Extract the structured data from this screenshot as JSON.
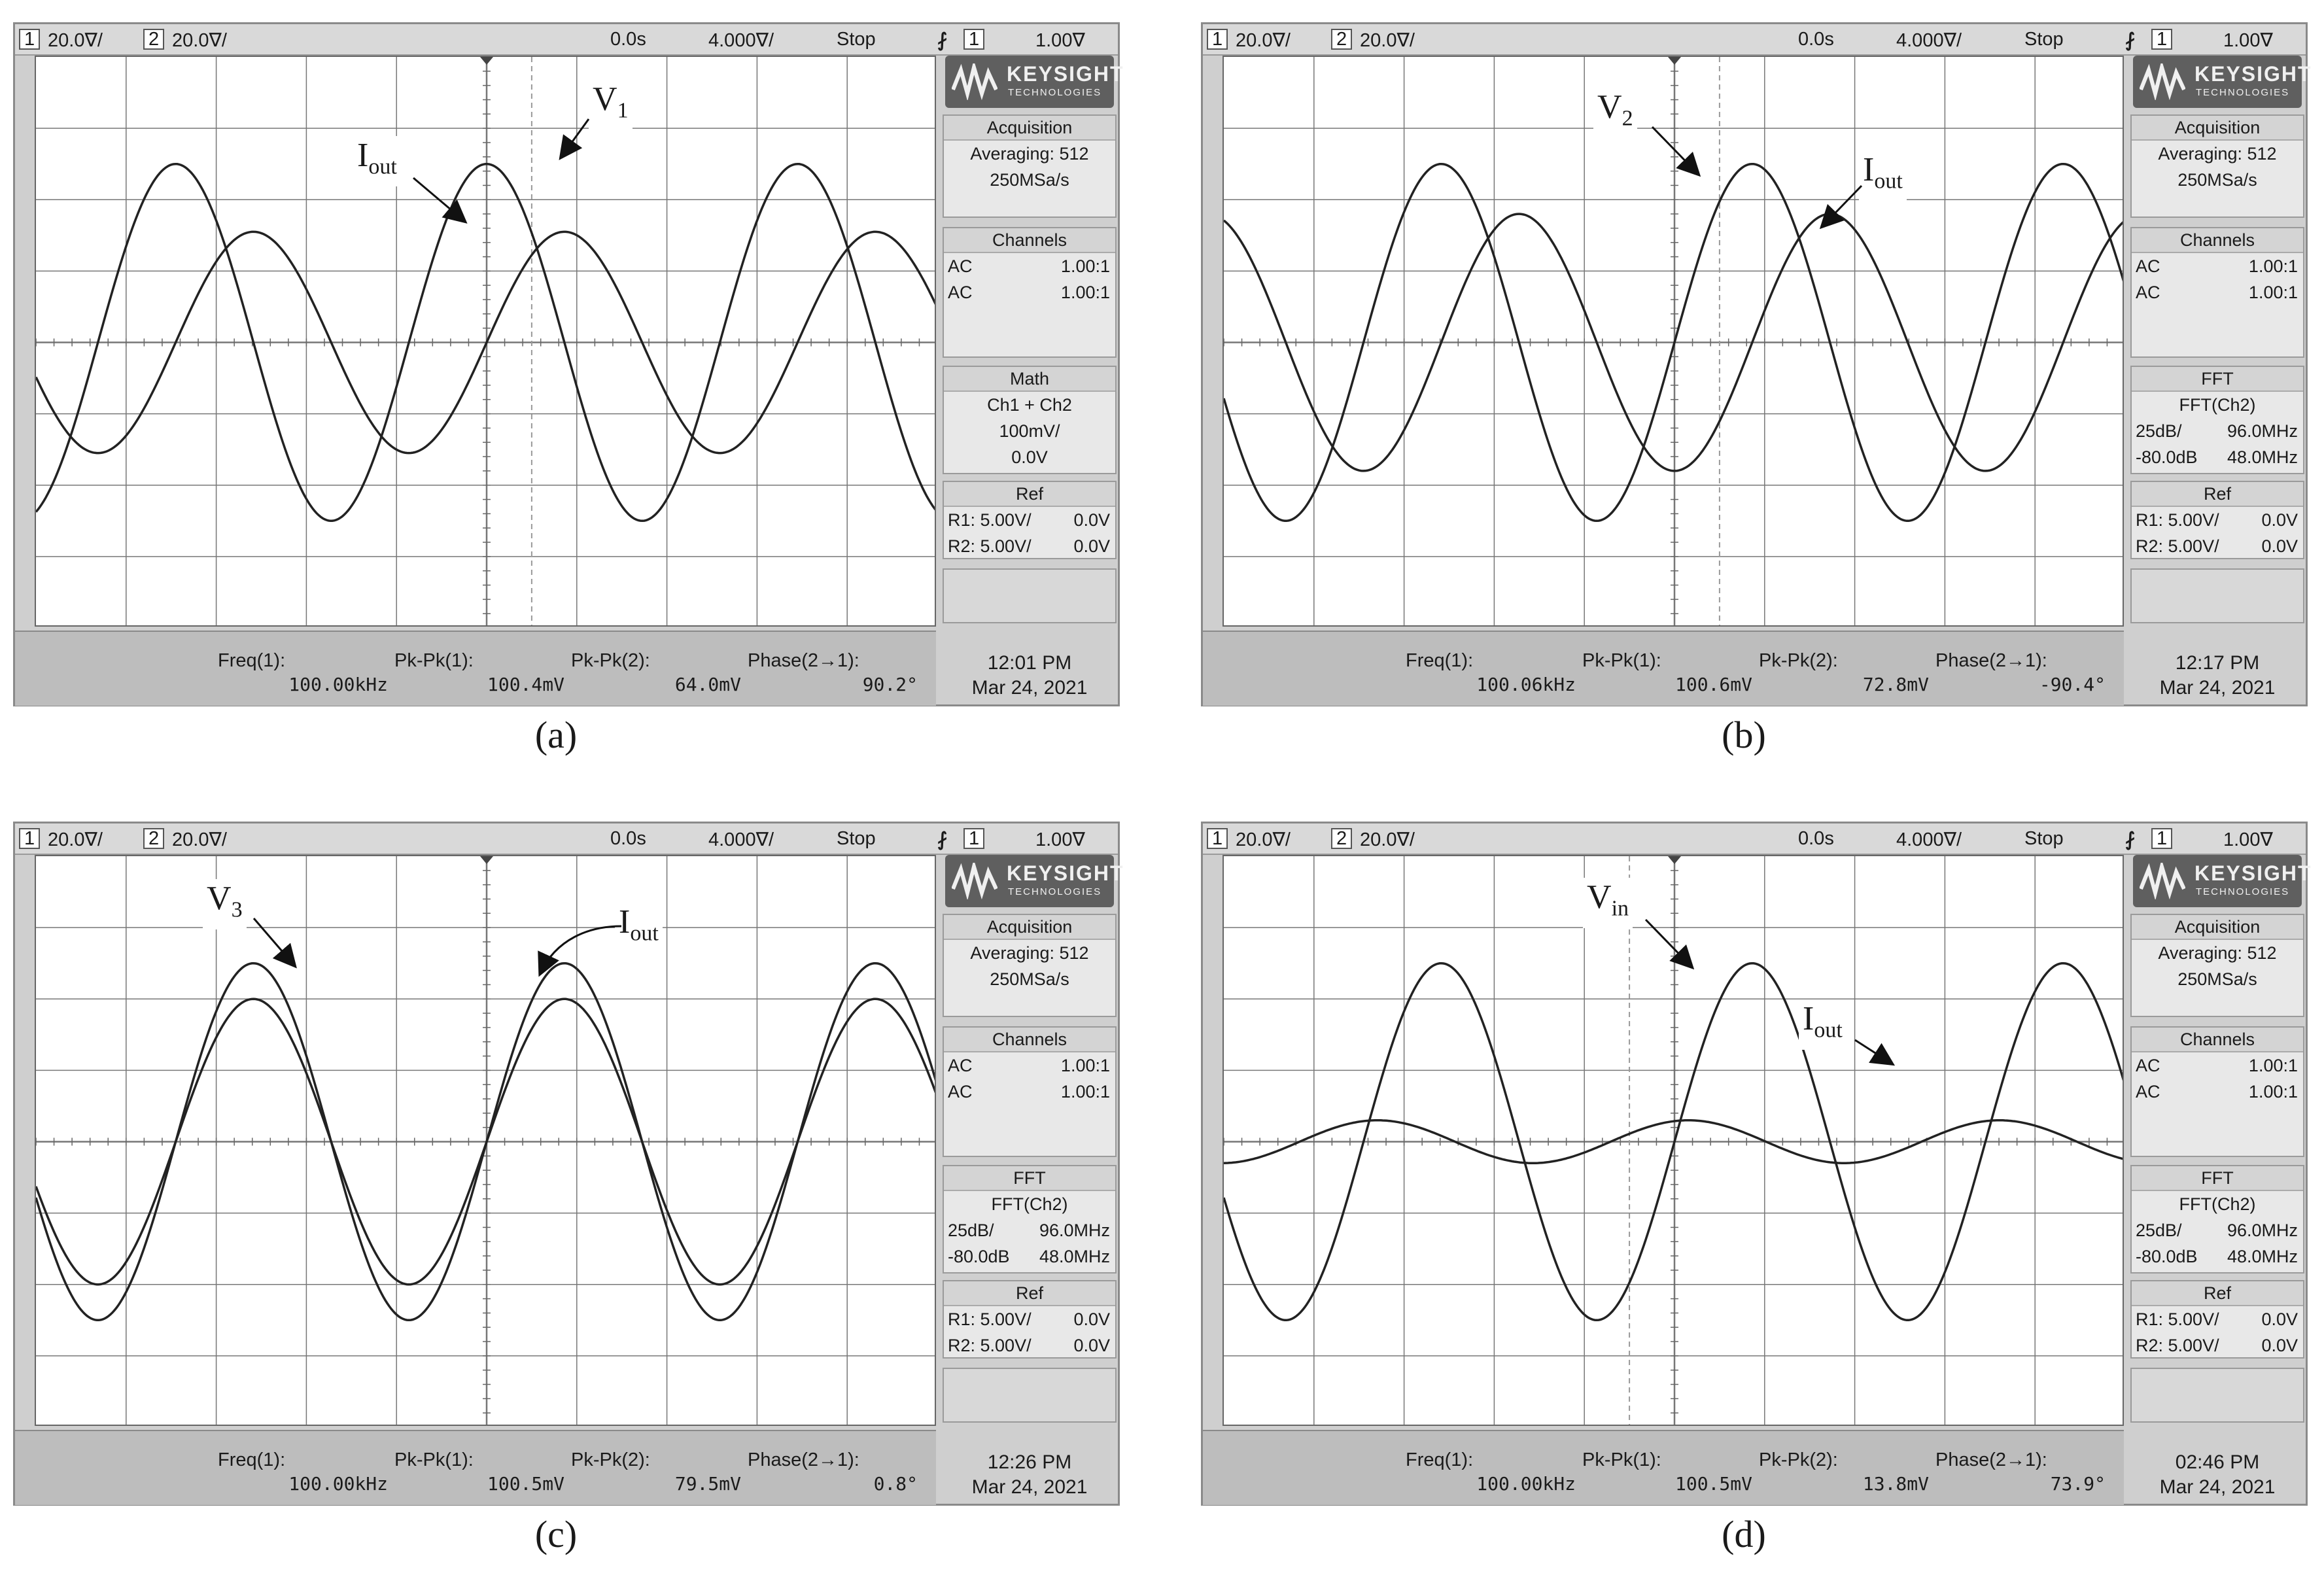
{
  "panels": [
    {
      "caption": "(a)",
      "top": {
        "ch1_num": "1",
        "ch1_scale": "20.0∇/",
        "ch2_num": "2",
        "ch2_scale": "20.0∇/",
        "delay": "0.0s",
        "timebase": "4.000∇/",
        "run_state": "Stop",
        "trig_icon": "trigger-edge-icon",
        "trig_src": "1",
        "trig_level": "1.00∇"
      },
      "logo": {
        "brand": "KEYSIGHT",
        "sub": "TECHNOLOGIES"
      },
      "acq": {
        "title": "Acquisition",
        "line1": "Averaging: 512",
        "line2": "250MSa/s"
      },
      "channels": {
        "title": "Channels",
        "r1l": "AC",
        "r1r": "1.00:1",
        "r2l": "AC",
        "r2r": "1.00:1"
      },
      "math": {
        "title": "Math",
        "line1": "Ch1 + Ch2",
        "line2": "100mV/",
        "line3": "0.0V"
      },
      "ref": {
        "title": "Ref",
        "r1l": "R1:  5.00V/",
        "r1r": "0.0V",
        "r2l": "R2:  5.00V/",
        "r2r": "0.0V"
      },
      "measurements": [
        {
          "label": "Freq(1):",
          "value": "100.00kHz"
        },
        {
          "label": "Pk-Pk(1):",
          "value": "100.4mV"
        },
        {
          "label": "Pk-Pk(2):",
          "value": "64.0mV"
        },
        {
          "label": "Phase(2→1):",
          "value": "90.2°"
        }
      ],
      "time": "12:01 PM",
      "date": "Mar 24, 2021",
      "labels": {
        "v_main": "V",
        "v_sub": "1",
        "i_main": "I",
        "i_sub": "out"
      },
      "waves": {
        "v_amp_div": 2.5,
        "v_phase_deg": 90,
        "i_amp_div": 1.55,
        "i_phase_deg": 0,
        "cursor_div": 5.5
      }
    },
    {
      "caption": "(b)",
      "top": {
        "ch1_num": "1",
        "ch1_scale": "20.0∇/",
        "ch2_num": "2",
        "ch2_scale": "20.0∇/",
        "delay": "0.0s",
        "timebase": "4.000∇/",
        "run_state": "Stop",
        "trig_icon": "trigger-edge-icon",
        "trig_src": "1",
        "trig_level": "1.00∇"
      },
      "logo": {
        "brand": "KEYSIGHT",
        "sub": "TECHNOLOGIES"
      },
      "acq": {
        "title": "Acquisition",
        "line1": "Averaging: 512",
        "line2": "250MSa/s"
      },
      "channels": {
        "title": "Channels",
        "r1l": "AC",
        "r1r": "1.00:1",
        "r2l": "AC",
        "r2r": "1.00:1"
      },
      "fft": {
        "title": "FFT",
        "line1": "FFT(Ch2)",
        "r1l": "25dB/",
        "r1r": "96.0MHz",
        "r2l": "-80.0dB",
        "r2r": "48.0MHz"
      },
      "ref": {
        "title": "Ref",
        "r1l": "R1:  5.00V/",
        "r1r": "0.0V",
        "r2l": "R2:  5.00V/",
        "r2r": "0.0V"
      },
      "measurements": [
        {
          "label": "Freq(1):",
          "value": "100.06kHz"
        },
        {
          "label": "Pk-Pk(1):",
          "value": "100.6mV"
        },
        {
          "label": "Pk-Pk(2):",
          "value": "72.8mV"
        },
        {
          "label": "Phase(2→1):",
          "value": "-90.4°"
        }
      ],
      "time": "12:17 PM",
      "date": "Mar 24, 2021",
      "labels": {
        "v_main": "V",
        "v_sub": "2",
        "i_main": "I",
        "i_sub": "out"
      },
      "waves": {
        "v_amp_div": 2.5,
        "v_phase_deg": 0,
        "i_amp_div": 1.8,
        "i_phase_deg": -90,
        "cursor_div": 5.5
      }
    },
    {
      "caption": "(c)",
      "top": {
        "ch1_num": "1",
        "ch1_scale": "20.0∇/",
        "ch2_num": "2",
        "ch2_scale": "20.0∇/",
        "delay": "0.0s",
        "timebase": "4.000∇/",
        "run_state": "Stop",
        "trig_icon": "trigger-edge-icon",
        "trig_src": "1",
        "trig_level": "1.00∇"
      },
      "logo": {
        "brand": "KEYSIGHT",
        "sub": "TECHNOLOGIES"
      },
      "acq": {
        "title": "Acquisition",
        "line1": "Averaging: 512",
        "line2": "250MSa/s"
      },
      "channels": {
        "title": "Channels",
        "r1l": "AC",
        "r1r": "1.00:1",
        "r2l": "AC",
        "r2r": "1.00:1"
      },
      "fft": {
        "title": "FFT",
        "line1": "FFT(Ch2)",
        "r1l": "25dB/",
        "r1r": "96.0MHz",
        "r2l": "-80.0dB",
        "r2r": "48.0MHz"
      },
      "ref": {
        "title": "Ref",
        "r1l": "R1:  5.00V/",
        "r1r": "0.0V",
        "r2l": "R2:  5.00V/",
        "r2r": "0.0V"
      },
      "measurements": [
        {
          "label": "Freq(1):",
          "value": "100.00kHz"
        },
        {
          "label": "Pk-Pk(1):",
          "value": "100.5mV"
        },
        {
          "label": "Pk-Pk(2):",
          "value": "79.5mV"
        },
        {
          "label": "Phase(2→1):",
          "value": "0.8°"
        }
      ],
      "time": "12:26 PM",
      "date": "Mar 24, 2021",
      "labels": {
        "v_main": "V",
        "v_sub": "3",
        "i_main": "I",
        "i_sub": "out"
      },
      "waves": {
        "v_amp_div": 2.5,
        "v_phase_deg": 0,
        "i_amp_div": 2.0,
        "i_phase_deg": 0,
        "cursor_div": null
      }
    },
    {
      "caption": "(d)",
      "top": {
        "ch1_num": "1",
        "ch1_scale": "20.0∇/",
        "ch2_num": "2",
        "ch2_scale": "20.0∇/",
        "delay": "0.0s",
        "timebase": "4.000∇/",
        "run_state": "Stop",
        "trig_icon": "trigger-edge-icon",
        "trig_src": "1",
        "trig_level": "1.00∇"
      },
      "logo": {
        "brand": "KEYSIGHT",
        "sub": "TECHNOLOGIES"
      },
      "acq": {
        "title": "Acquisition",
        "line1": "Averaging: 512",
        "line2": "250MSa/s"
      },
      "channels": {
        "title": "Channels",
        "r1l": "AC",
        "r1r": "1.00:1",
        "r2l": "AC",
        "r2r": "1.00:1"
      },
      "fft": {
        "title": "FFT",
        "line1": "FFT(Ch2)",
        "r1l": "25dB/",
        "r1r": "96.0MHz",
        "r2l": "-80.0dB",
        "r2r": "48.0MHz"
      },
      "ref": {
        "title": "Ref",
        "r1l": "R1:  5.00V/",
        "r1r": "0.0V",
        "r2l": "R2:  5.00V/",
        "r2r": "0.0V"
      },
      "measurements": [
        {
          "label": "Freq(1):",
          "value": "100.00kHz"
        },
        {
          "label": "Pk-Pk(1):",
          "value": "100.5mV"
        },
        {
          "label": "Pk-Pk(2):",
          "value": "13.8mV"
        },
        {
          "label": "Phase(2→1):",
          "value": "73.9°"
        }
      ],
      "time": "02:46 PM",
      "date": "Mar 24, 2021",
      "labels": {
        "v_main": "V",
        "v_sub": "in",
        "i_main": "I",
        "i_sub": "out"
      },
      "waves": {
        "v_amp_div": 2.5,
        "v_phase_deg": 0,
        "i_amp_div": 0.3,
        "i_phase_deg": 74,
        "cursor_div": 4.5
      }
    }
  ]
}
